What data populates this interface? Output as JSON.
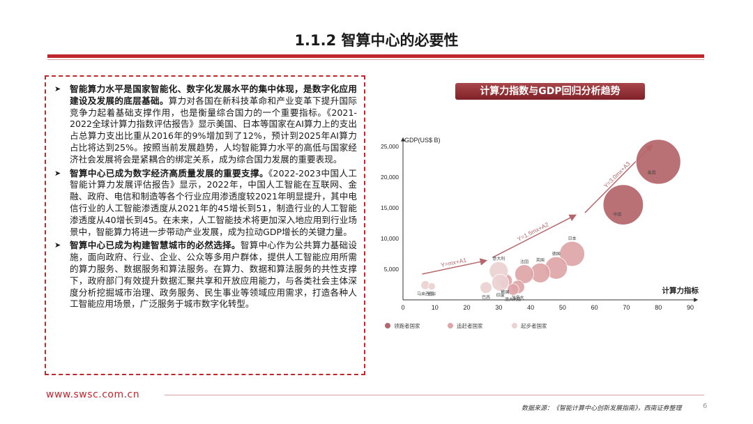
{
  "page": {
    "title": "1.1.2 智算中心的必要性",
    "footer_url": "www.swsc.com.cn",
    "source": "数据来源：《智能计算中心创新发展指南》，西南证券整理",
    "page_number": "6"
  },
  "bullets": [
    {
      "lead": "智能算力水平是国家智能化、数字化发展水平的集中体现，是数字化应用建设及发展的底层基础。",
      "body": "算力对各国在新科技革命和产业变革下提升国际竞争力起着基础支撑作用，也是衡量综合国力的一个重要指标。《2021-2022全球计算力指数评估报告》显示美国、日本等国家在AI算力上的支出占总算力支出比重从2016年的9%增加到了12%，预计到2025年AI算力占比将达到25%。按照当前发展趋势，人均智能算力水平的高低与国家经济社会发展将会是紧耦合的绑定关系，成为综合国力发展的重要表现。"
    },
    {
      "lead": "智算中心已成为数字经济高质量发展的重要支撑。",
      "body": "《2022-2023中国人工智能计算力发展评估报告》显示，2022年，中国人工智能在互联网、金融、政府、电信和制造等各个行业应用渗透度较2021年明显提升，其中电信行业的人工智能渗透度从2021年的45增长到51，制造行业的人工智能渗透度从40增长到45。在未来，人工智能技术将更加深入地应用到行业场景中，智能算力将进一步带动产业发展，成为拉动GDP增长的关键力量。"
    },
    {
      "lead": "智算中心已成为构建智慧城市的必然选择。",
      "body": "智算中心作为公共算力基础设施，面向政府、行业、企业、公众等多用户群体，提供人工智能应用所需的算力服务、数据服务和算法服务。在算力、数据和算法服务的共性支撑下，政府部门有效提升数据汇聚共享和开放应用能力，与各类社会主体深度分析挖掘城市治理、政务服务、民生事业等领域应用需求，打造各种人工智能应用场景，广泛服务于城市数字化转型。"
    }
  ],
  "chart_data": {
    "type": "scatter",
    "title": "计算力指数与GDP回归分析趋势",
    "xlabel": "计算力指标",
    "ylabel": "GDP(US$ B)",
    "xlim": [
      0,
      90
    ],
    "ylim": [
      0,
      25000
    ],
    "xticks": [
      0,
      10,
      20,
      30,
      40,
      50,
      60,
      70,
      80,
      90
    ],
    "yticks": [
      5000,
      10000,
      15000,
      20000,
      25000
    ],
    "ytick_labels": [
      "5,000",
      "10,000",
      "15,000",
      "20,000",
      "25,000"
    ],
    "grid": false,
    "legend_position": "bottom",
    "series": [
      {
        "name": "领跑者国家",
        "color": "#b5666b",
        "points": [
          {
            "label": "美国",
            "x": 80,
            "y": 22500,
            "size": 5
          },
          {
            "label": "中国",
            "x": 69,
            "y": 15500,
            "size": 4.5
          }
        ]
      },
      {
        "name": "追赶者国家",
        "color": "#dfa5a8",
        "points": [
          {
            "label": "日本",
            "x": 53,
            "y": 7500,
            "size": 2.8
          },
          {
            "label": "德国",
            "x": 48,
            "y": 5200,
            "size": 2.5
          },
          {
            "label": "英国",
            "x": 43,
            "y": 4400,
            "size": 2.2
          },
          {
            "label": "法国",
            "x": 38,
            "y": 4200,
            "size": 2.1
          },
          {
            "label": "加拿大",
            "x": 36,
            "y": 2100,
            "size": 1.5
          },
          {
            "label": "韩国",
            "x": 32,
            "y": 3100,
            "size": 1.6
          },
          {
            "label": "澳大利亚",
            "x": 34.5,
            "y": 1700,
            "size": 1.3
          }
        ]
      },
      {
        "name": "起步者国家",
        "color": "#ecd2d3",
        "points": [
          {
            "label": "意大利",
            "x": 30,
            "y": 4700,
            "size": 2.1
          },
          {
            "label": "印度",
            "x": 30.5,
            "y": 2800,
            "size": 1.9
          },
          {
            "label": "巴西",
            "x": 26,
            "y": 2000,
            "size": 1.3
          },
          {
            "label": "马来西亚",
            "x": 7,
            "y": 2400,
            "size": 1
          },
          {
            "label": "南非",
            "x": 9,
            "y": 2200,
            "size": 0.8
          }
        ]
      }
    ],
    "annotations": [
      {
        "text": "Y=mx+A1",
        "x1": 6,
        "y1": 4200,
        "x2": 26,
        "y2": 6400
      },
      {
        "text": "Y=1.5mx+A2",
        "x1": 28,
        "y1": 6900,
        "x2": 54,
        "y2": 13800
      },
      {
        "text": "Y=3.0mx+A3",
        "x1": 57,
        "y1": 14200,
        "x2": 78,
        "y2": 25200
      }
    ]
  }
}
